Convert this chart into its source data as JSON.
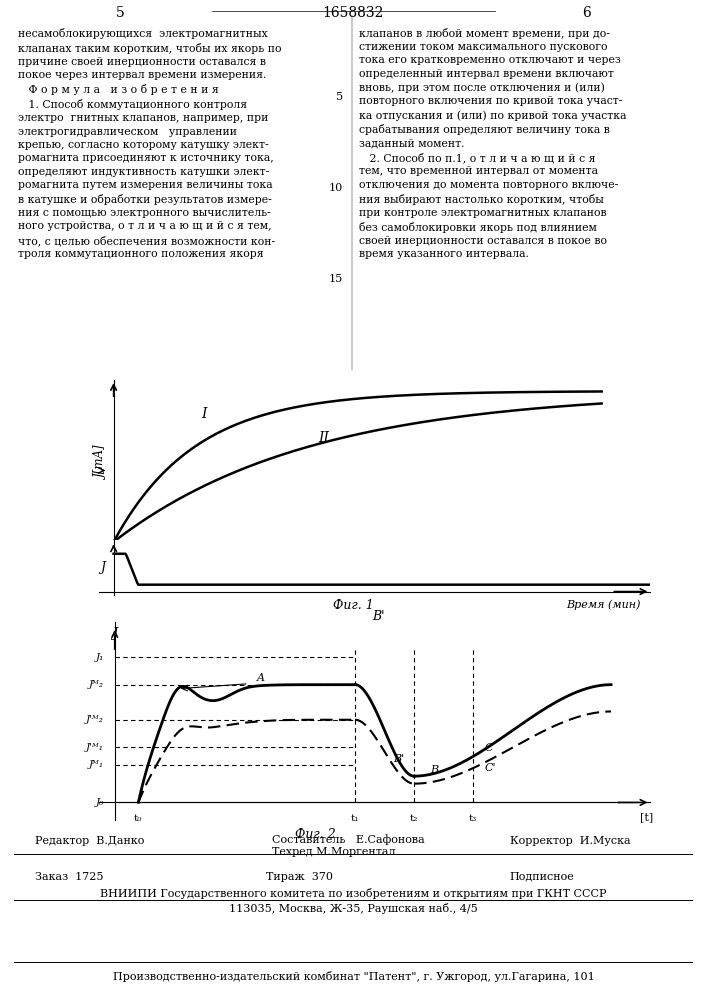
{
  "page_number_left": "5",
  "page_number_center": "1658832",
  "page_number_right": "6",
  "background_color": "#ffffff",
  "line_color": "#000000",
  "fig1_ylabel": "J[mA]",
  "fig1_xlabel": "Время (мин)",
  "fig1_caption": "Фиг. 1",
  "fig2_caption": "Фиг. 2",
  "curve_I": "I",
  "curve_II": "II",
  "label_A": "A",
  "label_B": "B",
  "label_Bprime": "B'",
  "label_C": "C",
  "label_Cprime": "C'",
  "J_labels": [
    "J₁",
    "Jᴹ₂",
    "J'ᴹ₂",
    "J'ᴹ₁",
    "Jᴹ₁",
    "J₀"
  ],
  "t_labels": [
    "t₀",
    "t₁",
    "t₂",
    "t₃"
  ],
  "footer_editor": "Редактор  В.Данко",
  "footer_author1": "Составитель   Е.Сафонова",
  "footer_techred": "Техред М.Моргентал",
  "footer_corrector": "Корректор  И.Муска",
  "footer_order": "Заказ  1725",
  "footer_print": "Тираж  370",
  "footer_type": "Подписное",
  "footer_vniiipi": "ВНИИПИ Государственного комитета по изобретениям и открытиям при ГКНТ СССР",
  "footer_vniiipi2": "113035, Москва, Ж-35, Раушская наб., 4/5",
  "footer_patent": "Производственно-издательский комбинат \"Патент\", г. Ужгород, ул.Гагарина, 101"
}
